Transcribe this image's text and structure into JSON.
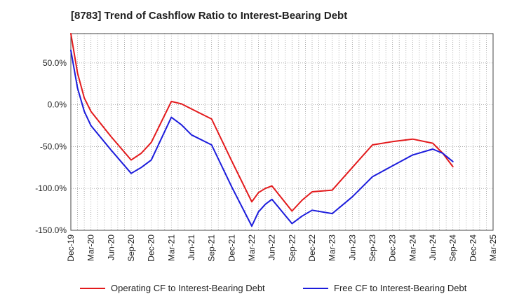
{
  "title": "[8783]  Trend of Cashflow Ratio to Interest-Bearing Debt",
  "chart_data": {
    "type": "line",
    "categories": [
      "Dec-19",
      "Mar-20",
      "Jun-20",
      "Sep-20",
      "Dec-20",
      "Mar-21",
      "Jun-21",
      "Sep-21",
      "Dec-21",
      "Mar-22",
      "Jun-22",
      "Sep-22",
      "Dec-22",
      "Mar-23",
      "Jun-23",
      "Sep-23",
      "Dec-23",
      "Mar-24",
      "Jun-24",
      "Sep-24",
      "Dec-24",
      "Mar-25"
    ],
    "yticks": [
      50,
      0,
      -50,
      -100,
      -150
    ],
    "ytick_labels": [
      "50.0%",
      "0.0%",
      "-50.0%",
      "-100.0%",
      "-150.0%"
    ],
    "ylim": [
      -150,
      85
    ],
    "grid": true,
    "legend_position": "bottom",
    "series": [
      {
        "name": "Operating CF to Interest-Bearing Debt",
        "color": "#e31a1c",
        "points": [
          [
            0,
            85
          ],
          [
            0.33,
            38
          ],
          [
            0.67,
            8
          ],
          [
            1,
            -8
          ],
          [
            2,
            -38
          ],
          [
            3,
            -66
          ],
          [
            3.5,
            -58
          ],
          [
            4,
            -45
          ],
          [
            5,
            4
          ],
          [
            5.5,
            1
          ],
          [
            6,
            -5
          ],
          [
            7,
            -17
          ],
          [
            8,
            -67
          ],
          [
            9,
            -116
          ],
          [
            9.33,
            -105
          ],
          [
            9.67,
            -100
          ],
          [
            10,
            -97
          ],
          [
            11,
            -127
          ],
          [
            11.5,
            -114
          ],
          [
            12,
            -104
          ],
          [
            13,
            -102
          ],
          [
            14,
            -75
          ],
          [
            15,
            -48
          ],
          [
            16,
            -44
          ],
          [
            17,
            -41
          ],
          [
            18,
            -46
          ],
          [
            18.5,
            -58
          ],
          [
            19,
            -74
          ]
        ]
      },
      {
        "name": "Free CF to Interest-Bearing Debt",
        "color": "#1c1cdc",
        "points": [
          [
            0,
            65
          ],
          [
            0.33,
            20
          ],
          [
            0.67,
            -8
          ],
          [
            1,
            -25
          ],
          [
            2,
            -54
          ],
          [
            3,
            -82
          ],
          [
            3.5,
            -75
          ],
          [
            4,
            -66
          ],
          [
            5,
            -15
          ],
          [
            5.5,
            -24
          ],
          [
            6,
            -36
          ],
          [
            7,
            -48
          ],
          [
            8,
            -98
          ],
          [
            9,
            -145
          ],
          [
            9.33,
            -128
          ],
          [
            9.67,
            -119
          ],
          [
            10,
            -113
          ],
          [
            11,
            -142
          ],
          [
            11.5,
            -133
          ],
          [
            12,
            -126
          ],
          [
            13,
            -130
          ],
          [
            14,
            -110
          ],
          [
            15,
            -86
          ],
          [
            16,
            -73
          ],
          [
            17,
            -60
          ],
          [
            18,
            -53
          ],
          [
            18.5,
            -58
          ],
          [
            19,
            -68
          ]
        ]
      }
    ]
  }
}
